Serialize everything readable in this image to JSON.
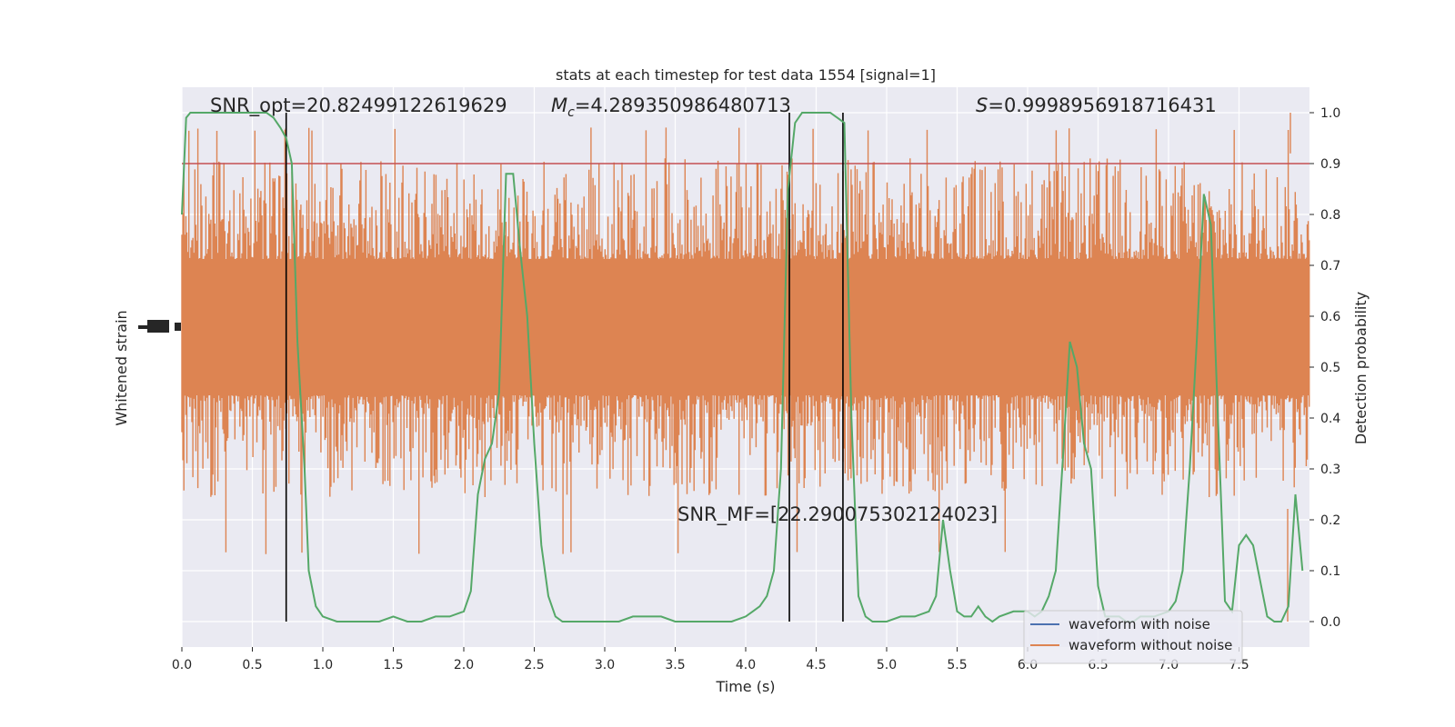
{
  "chart_data": {
    "type": "line",
    "title": "stats at each timestep for test data 1554 [signal=1]",
    "xlabel": "Time (s)",
    "ylabel_left": "Whitened strain",
    "ylabel_right": "Detection probability",
    "xlim": [
      0,
      8
    ],
    "ylim_right": [
      -0.05,
      1.05
    ],
    "x_ticks": [
      0.0,
      0.5,
      1.0,
      1.5,
      2.0,
      2.5,
      3.0,
      3.5,
      4.0,
      4.5,
      5.0,
      5.5,
      6.0,
      6.5,
      7.0,
      7.5
    ],
    "x_tick_labels": [
      "0.0",
      "0.5",
      "1.0",
      "1.5",
      "2.0",
      "2.5",
      "3.0",
      "3.5",
      "4.0",
      "4.5",
      "5.0",
      "5.5",
      "6.0",
      "6.5",
      "7.0",
      "7.5"
    ],
    "y_right_ticks": [
      0.0,
      0.1,
      0.2,
      0.3,
      0.4,
      0.5,
      0.6,
      0.7,
      0.8,
      0.9,
      1.0
    ],
    "y_right_tick_labels": [
      "0.0",
      "0.1",
      "0.2",
      "0.3",
      "0.4",
      "0.5",
      "0.6",
      "0.7",
      "0.8",
      "0.9",
      "1.0"
    ],
    "grid": true,
    "legend_position": "bottom-right",
    "annotations": {
      "snr_opt": "SNR_opt=20.82499122619629",
      "mc_symbol": "M",
      "mc_subscript": "c",
      "mc_value": "=4.289350986480713",
      "s_symbol": "S",
      "s_value": "=0.9998956918716431",
      "snr_mf": "SNR_MF=[22.290075302124023]"
    },
    "threshold": {
      "value": 0.9,
      "color": "#c44e52"
    },
    "vertical_lines": [
      0.74,
      4.31,
      4.69
    ],
    "series": [
      {
        "name": "waveform with noise",
        "color": "#4c72b0"
      },
      {
        "name": "waveform without noise",
        "color": "#dd8452"
      },
      {
        "color": "#55a868",
        "x": [
          0.0,
          0.03,
          0.06,
          0.12,
          0.18,
          0.25,
          0.3,
          0.4,
          0.5,
          0.6,
          0.65,
          0.7,
          0.74,
          0.78,
          0.82,
          0.87,
          0.9,
          0.95,
          1.0,
          1.1,
          1.2,
          1.3,
          1.4,
          1.5,
          1.6,
          1.7,
          1.8,
          1.9,
          2.0,
          2.05,
          2.1,
          2.15,
          2.2,
          2.25,
          2.3,
          2.35,
          2.4,
          2.45,
          2.5,
          2.55,
          2.6,
          2.65,
          2.7,
          2.75,
          2.8,
          2.9,
          3.0,
          3.1,
          3.2,
          3.3,
          3.4,
          3.5,
          3.6,
          3.7,
          3.8,
          3.9,
          4.0,
          4.05,
          4.1,
          4.15,
          4.2,
          4.25,
          4.3,
          4.35,
          4.4,
          4.5,
          4.6,
          4.65,
          4.7,
          4.75,
          4.8,
          4.85,
          4.9,
          5.0,
          5.1,
          5.2,
          5.3,
          5.35,
          5.4,
          5.45,
          5.5,
          5.55,
          5.6,
          5.65,
          5.7,
          5.75,
          5.8,
          5.9,
          6.0,
          6.05,
          6.1,
          6.15,
          6.2,
          6.25,
          6.3,
          6.35,
          6.4,
          6.45,
          6.5,
          6.55,
          6.6,
          6.65,
          6.7,
          6.75,
          6.8,
          6.85,
          6.9,
          7.0,
          7.05,
          7.1,
          7.15,
          7.2,
          7.25,
          7.3,
          7.35,
          7.4,
          7.45,
          7.5,
          7.55,
          7.6,
          7.7,
          7.75,
          7.8,
          7.85,
          7.9,
          7.95
        ],
        "y": [
          0.8,
          0.99,
          1.0,
          1.0,
          1.0,
          1.0,
          1.0,
          1.0,
          1.0,
          1.0,
          0.99,
          0.97,
          0.95,
          0.9,
          0.55,
          0.3,
          0.1,
          0.03,
          0.01,
          0.0,
          0.0,
          0.0,
          0.0,
          0.01,
          0.0,
          0.0,
          0.01,
          0.01,
          0.02,
          0.06,
          0.25,
          0.32,
          0.35,
          0.45,
          0.88,
          0.88,
          0.73,
          0.6,
          0.35,
          0.15,
          0.05,
          0.01,
          0.0,
          0.0,
          0.0,
          0.0,
          0.0,
          0.0,
          0.01,
          0.01,
          0.01,
          0.0,
          0.0,
          0.0,
          0.0,
          0.0,
          0.01,
          0.02,
          0.03,
          0.05,
          0.1,
          0.3,
          0.85,
          0.98,
          1.0,
          1.0,
          1.0,
          0.99,
          0.98,
          0.4,
          0.05,
          0.01,
          0.0,
          0.0,
          0.01,
          0.01,
          0.02,
          0.05,
          0.2,
          0.1,
          0.02,
          0.01,
          0.01,
          0.03,
          0.01,
          0.0,
          0.01,
          0.02,
          0.02,
          0.01,
          0.02,
          0.05,
          0.1,
          0.32,
          0.55,
          0.5,
          0.35,
          0.3,
          0.07,
          0.01,
          0.01,
          0.01,
          0.0,
          0.0,
          0.01,
          0.01,
          0.01,
          0.02,
          0.04,
          0.1,
          0.3,
          0.55,
          0.84,
          0.78,
          0.4,
          0.04,
          0.02,
          0.15,
          0.17,
          0.15,
          0.01,
          0.0,
          0.0,
          0.03,
          0.25,
          0.1
        ],
        "axis": "right"
      }
    ]
  }
}
